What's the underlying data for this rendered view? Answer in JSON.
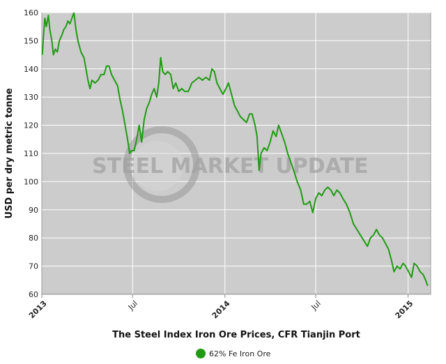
{
  "chart_data": {
    "type": "line",
    "title": "",
    "xlabel": "The Steel Index Iron Ore Prices, CFR Tianjin Port",
    "ylabel": "USD per dry metric tonne",
    "ylim": [
      60,
      160
    ],
    "yticks": [
      60,
      70,
      80,
      90,
      100,
      110,
      120,
      130,
      140,
      150,
      160
    ],
    "xlim": [
      "2013-01-01",
      "2015-02-15"
    ],
    "xticks": [
      {
        "date": "2013-01-01",
        "label": "2013",
        "major": true
      },
      {
        "date": "2013-07-01",
        "label": "Jul",
        "major": false
      },
      {
        "date": "2014-01-01",
        "label": "2014",
        "major": true
      },
      {
        "date": "2014-07-01",
        "label": "Jul",
        "major": false
      },
      {
        "date": "2015-01-01",
        "label": "2015",
        "major": true
      }
    ],
    "grid": true,
    "legend_position": "bottom-center",
    "watermark": "STEEL MARKET UPDATE",
    "series": [
      {
        "name": "62% Fe Iron Ore",
        "color": "#1f9a12",
        "points": [
          [
            "2013-01-02",
            145
          ],
          [
            "2013-01-04",
            151
          ],
          [
            "2013-01-07",
            158
          ],
          [
            "2013-01-10",
            155
          ],
          [
            "2013-01-14",
            159
          ],
          [
            "2013-01-17",
            154
          ],
          [
            "2013-01-21",
            150
          ],
          [
            "2013-01-24",
            145
          ],
          [
            "2013-01-28",
            147
          ],
          [
            "2013-02-01",
            146
          ],
          [
            "2013-02-05",
            150
          ],
          [
            "2013-02-10",
            152
          ],
          [
            "2013-02-14",
            154
          ],
          [
            "2013-02-18",
            155
          ],
          [
            "2013-02-22",
            157
          ],
          [
            "2013-02-26",
            156
          ],
          [
            "2013-03-02",
            158
          ],
          [
            "2013-03-06",
            160
          ],
          [
            "2013-03-10",
            154
          ],
          [
            "2013-03-14",
            150
          ],
          [
            "2013-03-20",
            146
          ],
          [
            "2013-03-26",
            144
          ],
          [
            "2013-03-30",
            140
          ],
          [
            "2013-04-03",
            136
          ],
          [
            "2013-04-07",
            133
          ],
          [
            "2013-04-11",
            136
          ],
          [
            "2013-04-17",
            135
          ],
          [
            "2013-04-23",
            136
          ],
          [
            "2013-04-29",
            138
          ],
          [
            "2013-05-05",
            138
          ],
          [
            "2013-05-10",
            141
          ],
          [
            "2013-05-15",
            141
          ],
          [
            "2013-05-20",
            138
          ],
          [
            "2013-05-26",
            136
          ],
          [
            "2013-06-01",
            134
          ],
          [
            "2013-06-06",
            129
          ],
          [
            "2013-06-11",
            125
          ],
          [
            "2013-06-16",
            120
          ],
          [
            "2013-06-21",
            115
          ],
          [
            "2013-06-25",
            110
          ],
          [
            "2013-06-29",
            111
          ],
          [
            "2013-07-04",
            111
          ],
          [
            "2013-07-09",
            115
          ],
          [
            "2013-07-14",
            120
          ],
          [
            "2013-07-19",
            114
          ],
          [
            "2013-07-24",
            122
          ],
          [
            "2013-07-29",
            126
          ],
          [
            "2013-08-03",
            128
          ],
          [
            "2013-08-08",
            131
          ],
          [
            "2013-08-13",
            133
          ],
          [
            "2013-08-18",
            130
          ],
          [
            "2013-08-22",
            135
          ],
          [
            "2013-08-26",
            144
          ],
          [
            "2013-08-30",
            139
          ],
          [
            "2013-09-04",
            138
          ],
          [
            "2013-09-09",
            139
          ],
          [
            "2013-09-15",
            138
          ],
          [
            "2013-09-20",
            133
          ],
          [
            "2013-09-25",
            135
          ],
          [
            "2013-10-01",
            132
          ],
          [
            "2013-10-07",
            133
          ],
          [
            "2013-10-13",
            132
          ],
          [
            "2013-10-20",
            132
          ],
          [
            "2013-10-27",
            135
          ],
          [
            "2013-11-03",
            136
          ],
          [
            "2013-11-10",
            137
          ],
          [
            "2013-11-17",
            136
          ],
          [
            "2013-11-24",
            137
          ],
          [
            "2013-12-01",
            136
          ],
          [
            "2013-12-06",
            140
          ],
          [
            "2013-12-11",
            139
          ],
          [
            "2013-12-16",
            135
          ],
          [
            "2013-12-22",
            133
          ],
          [
            "2013-12-28",
            131
          ],
          [
            "2014-01-03",
            133
          ],
          [
            "2014-01-08",
            135
          ],
          [
            "2014-01-14",
            131
          ],
          [
            "2014-01-20",
            127
          ],
          [
            "2014-01-26",
            125
          ],
          [
            "2014-02-01",
            123
          ],
          [
            "2014-02-07",
            122
          ],
          [
            "2014-02-13",
            121
          ],
          [
            "2014-02-19",
            124
          ],
          [
            "2014-02-24",
            124
          ],
          [
            "2014-03-02",
            120
          ],
          [
            "2014-03-06",
            116
          ],
          [
            "2014-03-10",
            104
          ],
          [
            "2014-03-14",
            110
          ],
          [
            "2014-03-20",
            112
          ],
          [
            "2014-03-26",
            111
          ],
          [
            "2014-04-01",
            114
          ],
          [
            "2014-04-07",
            118
          ],
          [
            "2014-04-13",
            116
          ],
          [
            "2014-04-18",
            120
          ],
          [
            "2014-04-24",
            117
          ],
          [
            "2014-04-30",
            114
          ],
          [
            "2014-05-06",
            110
          ],
          [
            "2014-05-12",
            107
          ],
          [
            "2014-05-18",
            104
          ],
          [
            "2014-05-25",
            100
          ],
          [
            "2014-06-01",
            97
          ],
          [
            "2014-06-07",
            92
          ],
          [
            "2014-06-13",
            92
          ],
          [
            "2014-06-19",
            93
          ],
          [
            "2014-06-25",
            89
          ],
          [
            "2014-07-01",
            94
          ],
          [
            "2014-07-07",
            96
          ],
          [
            "2014-07-13",
            95
          ],
          [
            "2014-07-19",
            97
          ],
          [
            "2014-07-25",
            98
          ],
          [
            "2014-07-31",
            97
          ],
          [
            "2014-08-06",
            95
          ],
          [
            "2014-08-12",
            97
          ],
          [
            "2014-08-18",
            96
          ],
          [
            "2014-08-24",
            94
          ],
          [
            "2014-08-31",
            92
          ],
          [
            "2014-09-07",
            89
          ],
          [
            "2014-09-14",
            85
          ],
          [
            "2014-09-21",
            83
          ],
          [
            "2014-09-28",
            81
          ],
          [
            "2014-10-05",
            79
          ],
          [
            "2014-10-12",
            77
          ],
          [
            "2014-10-18",
            80
          ],
          [
            "2014-10-24",
            81
          ],
          [
            "2014-10-30",
            83
          ],
          [
            "2014-11-05",
            81
          ],
          [
            "2014-11-11",
            80
          ],
          [
            "2014-11-17",
            78
          ],
          [
            "2014-11-23",
            76
          ],
          [
            "2014-11-29",
            72
          ],
          [
            "2014-12-04",
            68
          ],
          [
            "2014-12-10",
            70
          ],
          [
            "2014-12-16",
            69
          ],
          [
            "2014-12-22",
            71
          ],
          [
            "2014-12-27",
            70
          ],
          [
            "2015-01-02",
            68
          ],
          [
            "2015-01-08",
            66
          ],
          [
            "2015-01-13",
            71
          ],
          [
            "2015-01-19",
            70
          ],
          [
            "2015-01-25",
            68
          ],
          [
            "2015-01-31",
            67
          ],
          [
            "2015-02-05",
            65
          ],
          [
            "2015-02-09",
            63
          ]
        ]
      }
    ]
  }
}
